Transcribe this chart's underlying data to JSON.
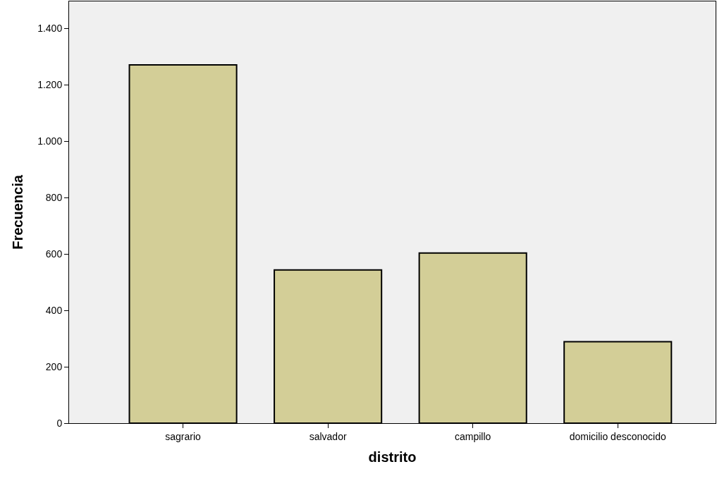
{
  "chart_data": {
    "type": "bar",
    "xlabel": "distrito",
    "ylabel": "Frecuencia",
    "categories": [
      "sagrario",
      "salvador",
      "campillo",
      "domicilio desconocido"
    ],
    "values": [
      1270,
      543,
      603,
      289
    ],
    "color": "#d3ce97",
    "ylim": [
      0,
      1495
    ],
    "yticks": [
      0,
      200,
      400,
      600,
      800,
      {
        "value": 1000,
        "label": "1.000"
      },
      {
        "value": 1200,
        "label": "1.200"
      },
      {
        "value": 1400,
        "label": "1.400"
      }
    ],
    "grid": false
  }
}
